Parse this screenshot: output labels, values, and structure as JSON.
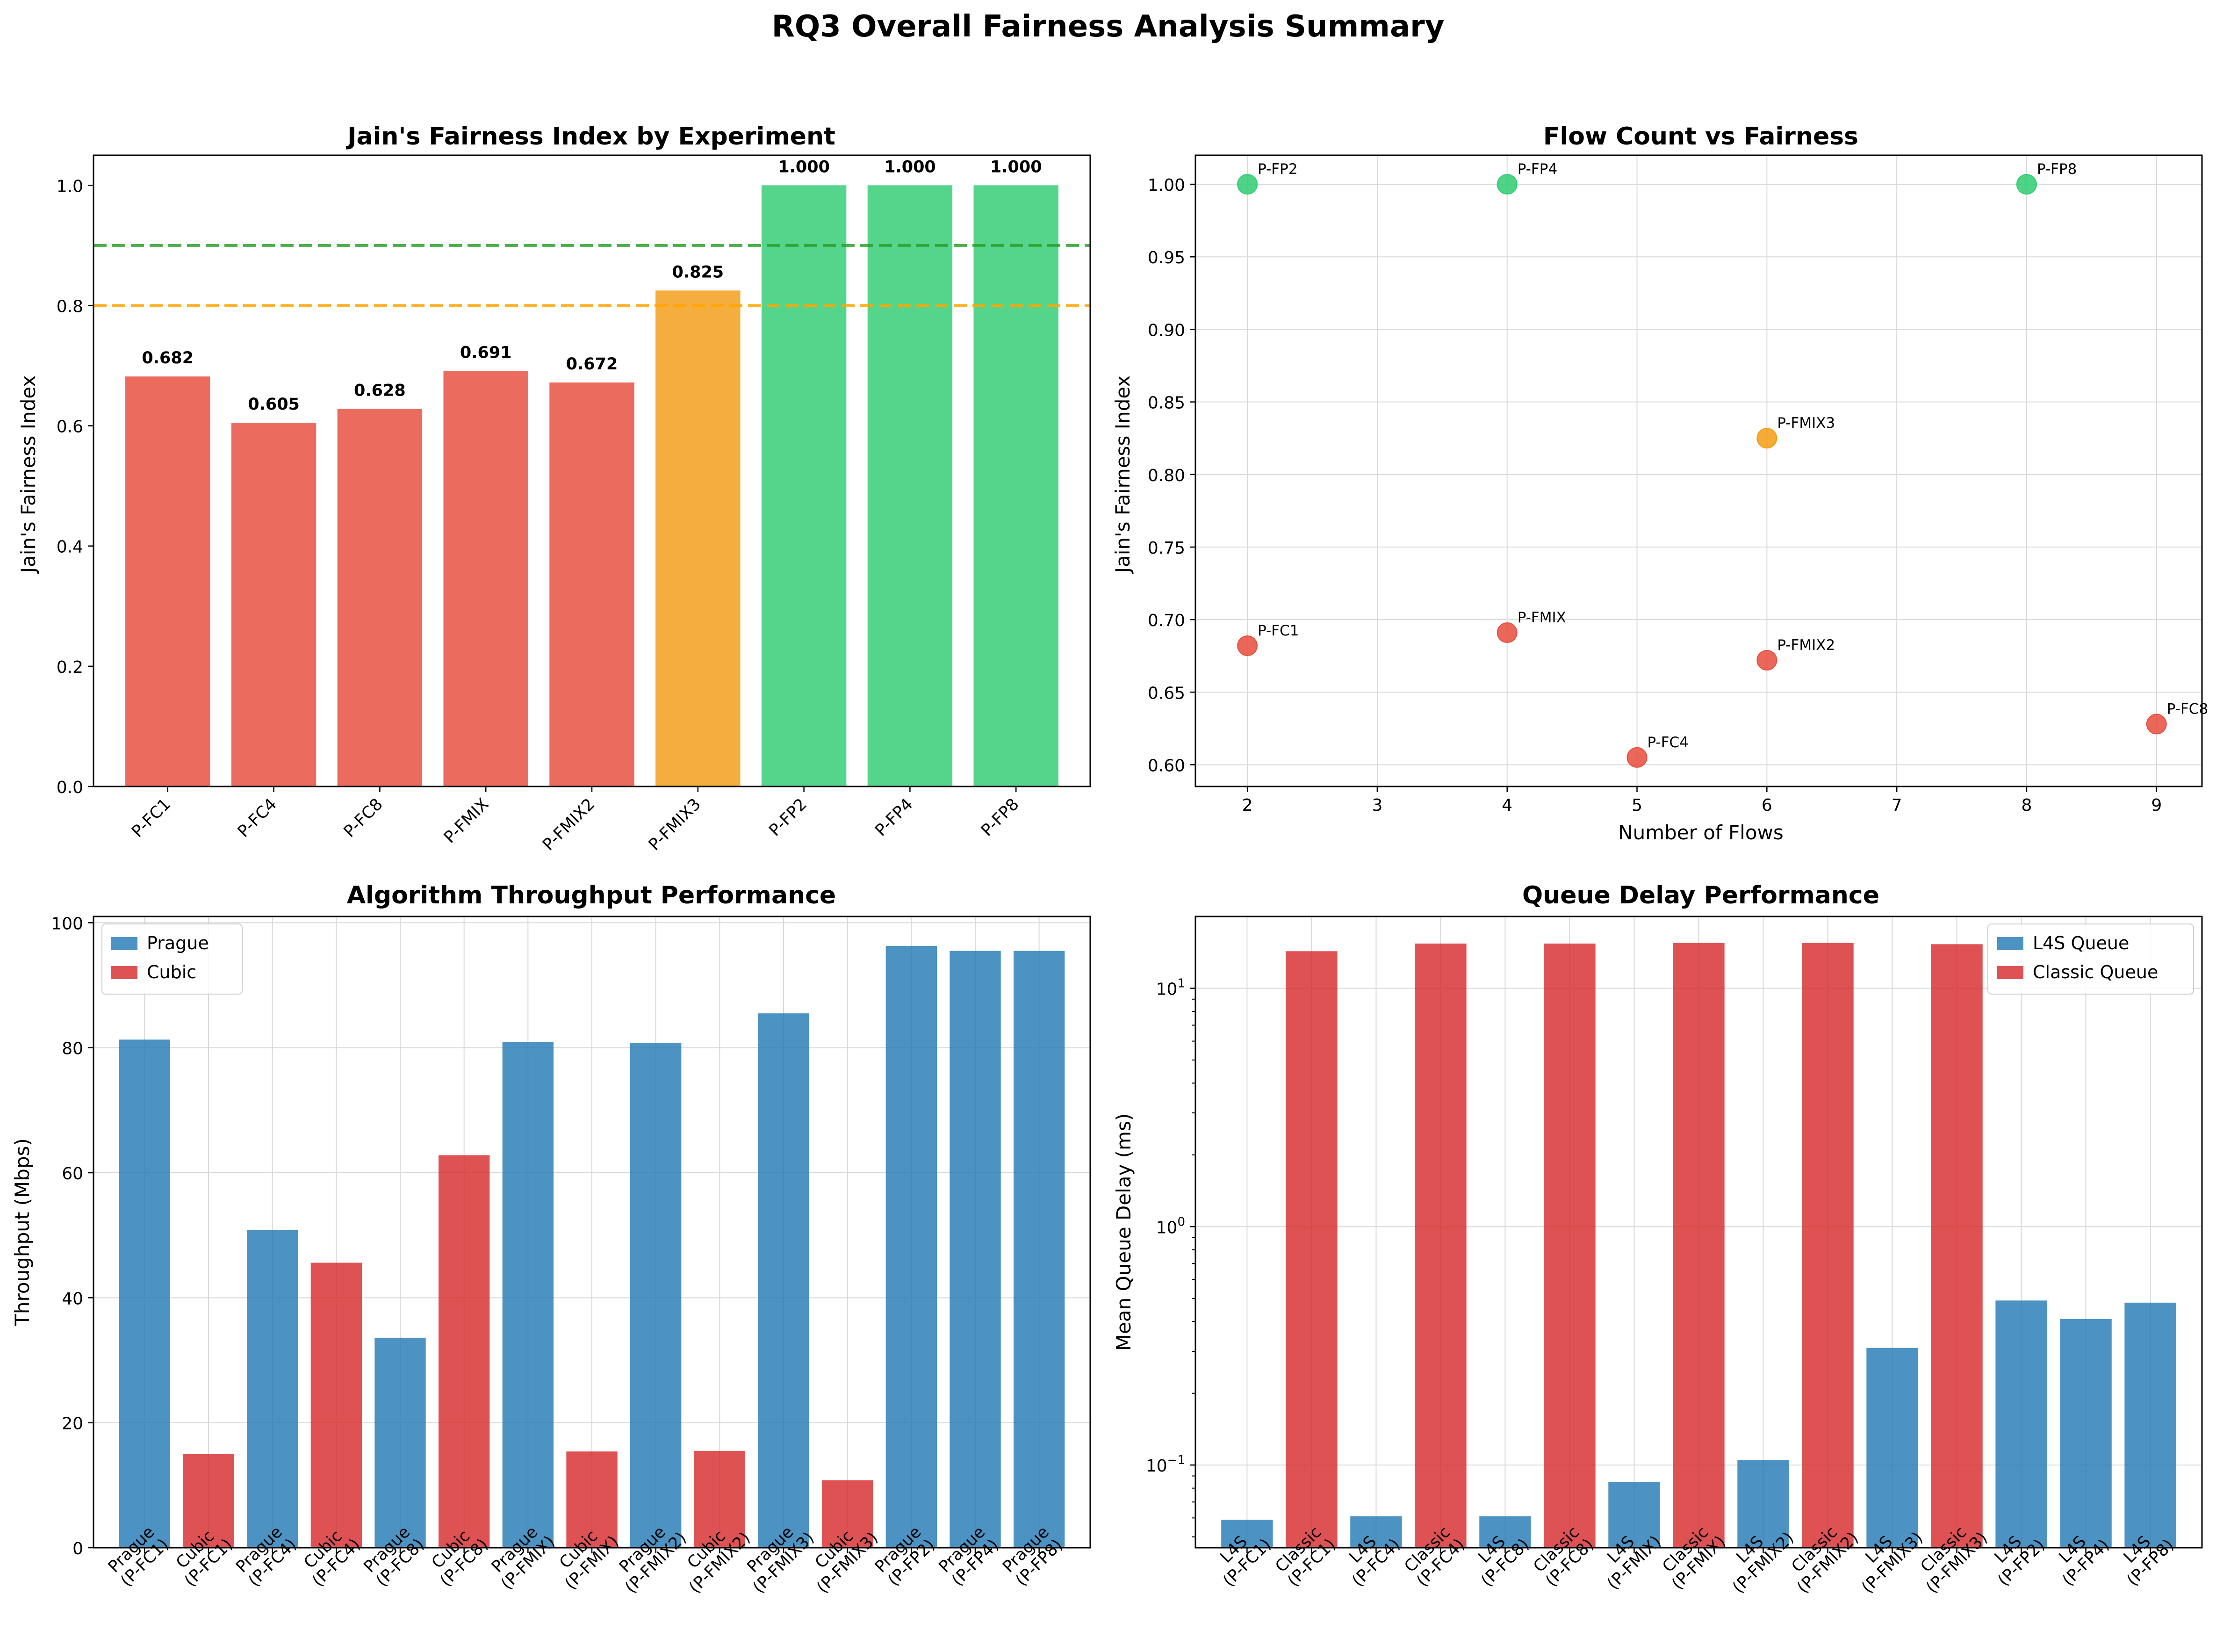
{
  "figure": {
    "suptitle": "RQ3 Overall Fairness Analysis Summary"
  },
  "colors": {
    "red": "#e74c3c",
    "orange": "#f39c12",
    "green": "#2ecc71",
    "blue": "#1f77b4",
    "cubic": "#d62728",
    "goodLine": "#2ca02c",
    "fairLine": "#ffa500",
    "grid": "#d9d9d9"
  },
  "chart_data": [
    {
      "type": "bar",
      "title": "Jain's Fairness Index by Experiment",
      "xlabel": "",
      "ylabel": "Jain's Fairness Index",
      "ylim": [
        0,
        1.05
      ],
      "yticks": [
        0.0,
        0.2,
        0.4,
        0.6,
        0.8,
        1.0
      ],
      "ytick_labels": [
        "0.0",
        "0.2",
        "0.4",
        "0.6",
        "0.8",
        "1.0"
      ],
      "categories": [
        "P-FC1",
        "P-FC4",
        "P-FC8",
        "P-FMIX",
        "P-FMIX2",
        "P-FMIX3",
        "P-FP2",
        "P-FP4",
        "P-FP8"
      ],
      "values": [
        0.682,
        0.605,
        0.628,
        0.691,
        0.672,
        0.825,
        1.0,
        1.0,
        1.0
      ],
      "value_labels": [
        "0.682",
        "0.605",
        "0.628",
        "0.691",
        "0.672",
        "0.825",
        "1.000",
        "1.000",
        "1.000"
      ],
      "bar_colors": [
        "red",
        "red",
        "red",
        "red",
        "red",
        "orange",
        "green",
        "green",
        "green"
      ],
      "reference_lines": [
        {
          "y": 0.9,
          "color": "goodLine",
          "style": "dashed"
        },
        {
          "y": 0.8,
          "color": "fairLine",
          "style": "dashed"
        }
      ],
      "grid": false
    },
    {
      "type": "scatter",
      "title": "Flow Count vs Fairness",
      "xlabel": "Number of Flows",
      "ylabel": "Jain's Fairness Index",
      "xlim": [
        1.6,
        9.35
      ],
      "ylim": [
        0.585,
        1.02
      ],
      "xticks": [
        2,
        3,
        4,
        5,
        6,
        7,
        8,
        9
      ],
      "xtick_labels": [
        "2",
        "3",
        "4",
        "5",
        "6",
        "7",
        "8",
        "9"
      ],
      "yticks": [
        0.6,
        0.65,
        0.7,
        0.75,
        0.8,
        0.85,
        0.9,
        0.95,
        1.0
      ],
      "ytick_labels": [
        "0.60",
        "0.65",
        "0.70",
        "0.75",
        "0.80",
        "0.85",
        "0.90",
        "0.95",
        "1.00"
      ],
      "points": [
        {
          "label": "P-FC1",
          "x": 2,
          "y": 0.682,
          "color": "red"
        },
        {
          "label": "P-FC4",
          "x": 5,
          "y": 0.605,
          "color": "red"
        },
        {
          "label": "P-FC8",
          "x": 9,
          "y": 0.628,
          "color": "red"
        },
        {
          "label": "P-FMIX",
          "x": 4,
          "y": 0.691,
          "color": "red"
        },
        {
          "label": "P-FMIX2",
          "x": 6,
          "y": 0.672,
          "color": "red"
        },
        {
          "label": "P-FMIX3",
          "x": 6,
          "y": 0.825,
          "color": "orange"
        },
        {
          "label": "P-FP2",
          "x": 2,
          "y": 1.0,
          "color": "green"
        },
        {
          "label": "P-FP4",
          "x": 4,
          "y": 1.0,
          "color": "green"
        },
        {
          "label": "P-FP8",
          "x": 8,
          "y": 1.0,
          "color": "green"
        }
      ],
      "grid": true
    },
    {
      "type": "bar",
      "title": "Algorithm Throughput Performance",
      "xlabel": "",
      "ylabel": "Throughput (Mbps)",
      "ylim": [
        0,
        101
      ],
      "yticks": [
        0,
        20,
        40,
        60,
        80,
        100
      ],
      "ytick_labels": [
        "0",
        "20",
        "40",
        "60",
        "80",
        "100"
      ],
      "categories": [
        [
          "Prague",
          "(P-FC1)"
        ],
        [
          "Cubic",
          "(P-FC1)"
        ],
        [
          "Prague",
          "(P-FC4)"
        ],
        [
          "Cubic",
          "(P-FC4)"
        ],
        [
          "Prague",
          "(P-FC8)"
        ],
        [
          "Cubic",
          "(P-FC8)"
        ],
        [
          "Prague",
          "(P-FMIX)"
        ],
        [
          "Cubic",
          "(P-FMIX)"
        ],
        [
          "Prague",
          "(P-FMIX2)"
        ],
        [
          "Cubic",
          "(P-FMIX2)"
        ],
        [
          "Prague",
          "(P-FMIX3)"
        ],
        [
          "Cubic",
          "(P-FMIX3)"
        ],
        [
          "Prague",
          "(P-FP2)"
        ],
        [
          "Prague",
          "(P-FP4)"
        ],
        [
          "Prague",
          "(P-FP8)"
        ]
      ],
      "values": [
        81.3,
        15.0,
        50.8,
        45.6,
        33.6,
        62.8,
        80.9,
        15.4,
        80.8,
        15.5,
        85.5,
        10.8,
        96.3,
        95.5,
        95.5
      ],
      "series_of_bar": [
        "Prague",
        "Cubic",
        "Prague",
        "Cubic",
        "Prague",
        "Cubic",
        "Prague",
        "Cubic",
        "Prague",
        "Cubic",
        "Prague",
        "Cubic",
        "Prague",
        "Prague",
        "Prague"
      ],
      "legend": [
        {
          "name": "Prague",
          "color": "blue"
        },
        {
          "name": "Cubic",
          "color": "cubic"
        }
      ],
      "legend_position": "upper-left",
      "grid": true
    },
    {
      "type": "bar",
      "title": "Queue Delay Performance",
      "xlabel": "",
      "ylabel": "Mean Queue Delay (ms)",
      "yscale": "log",
      "ylim": [
        0.045,
        20
      ],
      "yticks": [
        0.1,
        1,
        10
      ],
      "ytick_labels": [
        [
          "10",
          "−1"
        ],
        [
          "10",
          "0"
        ],
        [
          "10",
          "1"
        ]
      ],
      "categories": [
        [
          "L4S",
          "(P-FC1)"
        ],
        [
          "Classic",
          "(P-FC1)"
        ],
        [
          "L4S",
          "(P-FC4)"
        ],
        [
          "Classic",
          "(P-FC4)"
        ],
        [
          "L4S",
          "(P-FC8)"
        ],
        [
          "Classic",
          "(P-FC8)"
        ],
        [
          "L4S",
          "(P-FMIX)"
        ],
        [
          "Classic",
          "(P-FMIX)"
        ],
        [
          "L4S",
          "(P-FMIX2)"
        ],
        [
          "Classic",
          "(P-FMIX2)"
        ],
        [
          "L4S",
          "(P-FMIX3)"
        ],
        [
          "Classic",
          "(P-FMIX3)"
        ],
        [
          "L4S",
          "(P-FP2)"
        ],
        [
          "L4S",
          "(P-FP4)"
        ],
        [
          "L4S",
          "(P-FP8)"
        ]
      ],
      "values": [
        0.059,
        14.3,
        0.061,
        15.4,
        0.061,
        15.4,
        0.085,
        15.5,
        0.105,
        15.5,
        0.31,
        15.3,
        0.49,
        0.41,
        0.48
      ],
      "series_of_bar": [
        "L4S",
        "Classic",
        "L4S",
        "Classic",
        "L4S",
        "Classic",
        "L4S",
        "Classic",
        "L4S",
        "Classic",
        "L4S",
        "Classic",
        "L4S",
        "L4S",
        "L4S"
      ],
      "legend": [
        {
          "name": "L4S Queue",
          "color": "blue"
        },
        {
          "name": "Classic Queue",
          "color": "cubic"
        }
      ],
      "legend_position": "upper-right",
      "grid": true
    }
  ]
}
